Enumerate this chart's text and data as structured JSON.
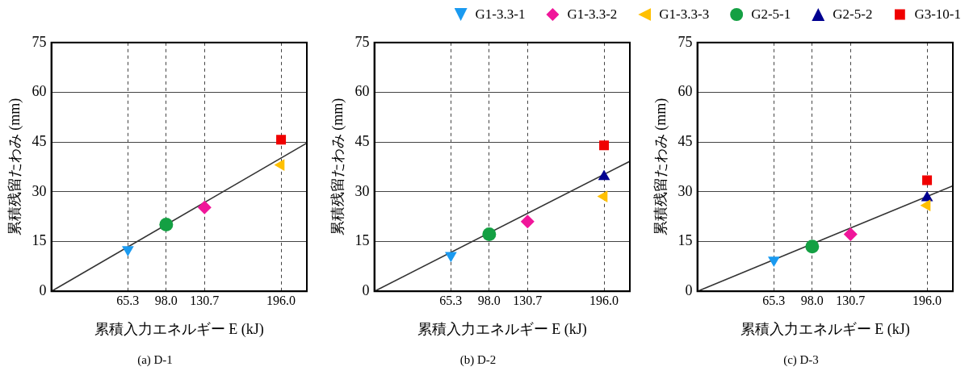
{
  "chart_data": [
    {
      "type": "scatter",
      "title": "(a) D-1",
      "xlabel": "累積入力エネルギー E (kJ)",
      "ylabel": "累積残留たわみ (mm)",
      "xlim": [
        0,
        218
      ],
      "xticks": [
        {
          "value": 65.3,
          "label": "65.3"
        },
        {
          "value": 98,
          "label": "98.0"
        },
        {
          "value": 130.7,
          "label": "130.7"
        },
        {
          "value": 196,
          "label": "196.0"
        }
      ],
      "ylim": [
        0,
        75
      ],
      "yticks": [
        0,
        15,
        30,
        45,
        60,
        75
      ],
      "grid": true,
      "series": [
        {
          "color": "#1a9af0",
          "marker": "triangle-down",
          "x": [
            65.3
          ],
          "values": [
            12.6
          ]
        },
        {
          "color": "#f0169a",
          "marker": "diamond",
          "x": [
            130.7
          ],
          "values": [
            25.3
          ]
        },
        {
          "color": "#ffc000",
          "marker": "triangle-left",
          "x": [
            196.0
          ],
          "values": [
            38.1
          ]
        },
        {
          "color": "#14a043",
          "marker": "circle",
          "x": [
            98.0
          ],
          "values": [
            20.1
          ]
        },
        {
          "color": "#f00000",
          "marker": "square",
          "x": [
            196.0
          ],
          "values": [
            45.7
          ]
        },
        {
          "type": "line",
          "color": "#333333",
          "marker": "none",
          "x": [
            0,
            218
          ],
          "values": [
            0,
            44.7
          ]
        }
      ]
    },
    {
      "type": "scatter",
      "title": "(b) D-2",
      "xlabel": "累積入力エネルギー E (kJ)",
      "ylabel": "累積残留たわみ (mm)",
      "xlim": [
        0,
        218
      ],
      "xticks": [
        {
          "value": 65.3,
          "label": "65.3"
        },
        {
          "value": 98,
          "label": "98.0"
        },
        {
          "value": 130.7,
          "label": "130.7"
        },
        {
          "value": 196,
          "label": "196.0"
        }
      ],
      "ylim": [
        0,
        75
      ],
      "yticks": [
        0,
        15,
        30,
        45,
        60,
        75
      ],
      "grid": true,
      "legend": "top right",
      "series": [
        {
          "name": "G1-3.3-1",
          "color": "#1a9af0",
          "marker": "triangle-down",
          "x": [
            65.3
          ],
          "values": [
            10.8
          ]
        },
        {
          "name": "G1-3.3-2",
          "color": "#f0169a",
          "marker": "diamond",
          "x": [
            130.7
          ],
          "values": [
            21.0
          ]
        },
        {
          "name": "G1-3.3-3",
          "color": "#ffc000",
          "marker": "triangle-left",
          "x": [
            196.0
          ],
          "values": [
            28.6
          ]
        },
        {
          "name": "G2-5-1",
          "color": "#14a043",
          "marker": "circle",
          "x": [
            98.0
          ],
          "values": [
            17.2
          ]
        },
        {
          "name": "G2-5-2",
          "color": "#000090",
          "marker": "triangle",
          "x": [
            196.0
          ],
          "values": [
            34.6
          ]
        },
        {
          "name": "G3-10-1",
          "color": "#f00000",
          "marker": "square",
          "x": [
            196.0
          ],
          "values": [
            44.0
          ]
        },
        {
          "type": "line",
          "color": "#333333",
          "marker": "none",
          "x": [
            0,
            218
          ],
          "values": [
            0,
            39.2
          ]
        }
      ]
    },
    {
      "type": "scatter",
      "title": "(c) D-3",
      "xlabel": "累積入力エネルギー E (kJ)",
      "ylabel": "累積残留たわみ (mm)",
      "xlim": [
        0,
        218
      ],
      "xticks": [
        {
          "value": 65.3,
          "label": "65.3"
        },
        {
          "value": 98,
          "label": "98.0"
        },
        {
          "value": 130.7,
          "label": "130.7"
        },
        {
          "value": 196,
          "label": "196.0"
        }
      ],
      "ylim": [
        0,
        75
      ],
      "yticks": [
        0,
        15,
        30,
        45,
        60,
        75
      ],
      "grid": true,
      "series": [
        {
          "color": "#1a9af0",
          "marker": "triangle-down",
          "x": [
            65.3
          ],
          "values": [
            9.4
          ]
        },
        {
          "color": "#f0169a",
          "marker": "diamond",
          "x": [
            130.7
          ],
          "values": [
            17.2
          ]
        },
        {
          "color": "#ffc000",
          "marker": "triangle-left",
          "x": [
            196.0
          ],
          "values": [
            25.9
          ]
        },
        {
          "color": "#14a043",
          "marker": "circle",
          "x": [
            98.0
          ],
          "values": [
            13.5
          ]
        },
        {
          "color": "#000090",
          "marker": "triangle",
          "x": [
            196.0
          ],
          "values": [
            28.2
          ]
        },
        {
          "color": "#f00000",
          "marker": "square",
          "x": [
            196.0
          ],
          "values": [
            33.5
          ]
        },
        {
          "type": "line",
          "color": "#333333",
          "marker": "none",
          "x": [
            0,
            218
          ],
          "values": [
            0,
            31.8
          ]
        }
      ]
    }
  ]
}
